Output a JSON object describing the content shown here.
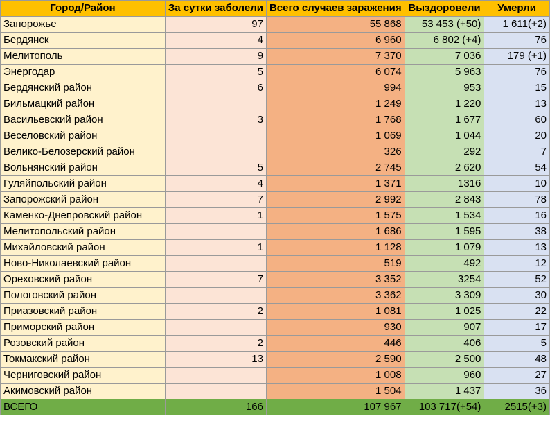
{
  "headers": {
    "name": "Город/Район",
    "daily": "За сутки заболели",
    "total": "Всего случаев заражения",
    "recovered": "Выздоровели",
    "died": "Умерли"
  },
  "rows": [
    {
      "name": "Запорожье",
      "daily": "97",
      "total": "55 868",
      "recovered": "53 453 (+50)",
      "died": "1 611(+2)"
    },
    {
      "name": "Бердянск",
      "daily": "4",
      "total": "6 960",
      "recovered": "6 802 (+4)",
      "died": "76"
    },
    {
      "name": "Мелитополь",
      "daily": "9",
      "total": "7 370",
      "recovered": "7 036",
      "died": "179 (+1)"
    },
    {
      "name": "Энергодар",
      "daily": "5",
      "total": "6 074",
      "recovered": "5 963",
      "died": "76"
    },
    {
      "name": "Бердянский район",
      "daily": "6",
      "total": "994",
      "recovered": "953",
      "died": "15"
    },
    {
      "name": "Бильмацкий район",
      "daily": "",
      "total": "1 249",
      "recovered": "1 220",
      "died": "13"
    },
    {
      "name": "Васильевский район",
      "daily": "3",
      "total": "1 768",
      "recovered": "1 677",
      "died": "60"
    },
    {
      "name": "Веселовский район",
      "daily": "",
      "total": "1 069",
      "recovered": "1 044",
      "died": "20"
    },
    {
      "name": "Велико-Белозерский район",
      "daily": "",
      "total": "326",
      "recovered": "292",
      "died": "7"
    },
    {
      "name": "Вольнянский район",
      "daily": "5",
      "total": "2 745",
      "recovered": "2 620",
      "died": "54"
    },
    {
      "name": "Гуляйпольский район",
      "daily": "4",
      "total": "1 371",
      "recovered": "1316",
      "died": "10"
    },
    {
      "name": "Запорожский район",
      "daily": "7",
      "total": "2 992",
      "recovered": "2 843",
      "died": "78"
    },
    {
      "name": "Каменко-Днепровский район",
      "daily": "1",
      "total": "1 575",
      "recovered": "1 534",
      "died": "16"
    },
    {
      "name": "Мелитопольский район",
      "daily": "",
      "total": "1 686",
      "recovered": "1 595",
      "died": "38"
    },
    {
      "name": "Михайловский район",
      "daily": "1",
      "total": "1 128",
      "recovered": "1 079",
      "died": "13"
    },
    {
      "name": "Ново-Николаевский район",
      "daily": "",
      "total": "519",
      "recovered": "492",
      "died": "12"
    },
    {
      "name": "Ореховский район",
      "daily": "7",
      "total": "3 352",
      "recovered": "3254",
      "died": "52"
    },
    {
      "name": "Пологовский район",
      "daily": "",
      "total": "3 362",
      "recovered": "3 309",
      "died": "30"
    },
    {
      "name": "Приазовский район",
      "daily": "2",
      "total": "1 081",
      "recovered": "1 025",
      "died": "22"
    },
    {
      "name": "Приморский район",
      "daily": "",
      "total": "930",
      "recovered": "907",
      "died": "17"
    },
    {
      "name": "Розовский район",
      "daily": "2",
      "total": "446",
      "recovered": "406",
      "died": "5"
    },
    {
      "name": "Токмакский район",
      "daily": "13",
      "total": "2 590",
      "recovered": "2 500",
      "died": "48"
    },
    {
      "name": "Черниговский район",
      "daily": "",
      "total": "1 008",
      "recovered": "960",
      "died": "27"
    },
    {
      "name": "Акимовский район",
      "daily": "",
      "total": "1 504",
      "recovered": "1 437",
      "died": "36"
    }
  ],
  "totals": {
    "name": "ВСЕГО",
    "daily": "166",
    "total": "107 967",
    "recovered": "103 717(+54)",
    "died": "2515(+3)"
  }
}
